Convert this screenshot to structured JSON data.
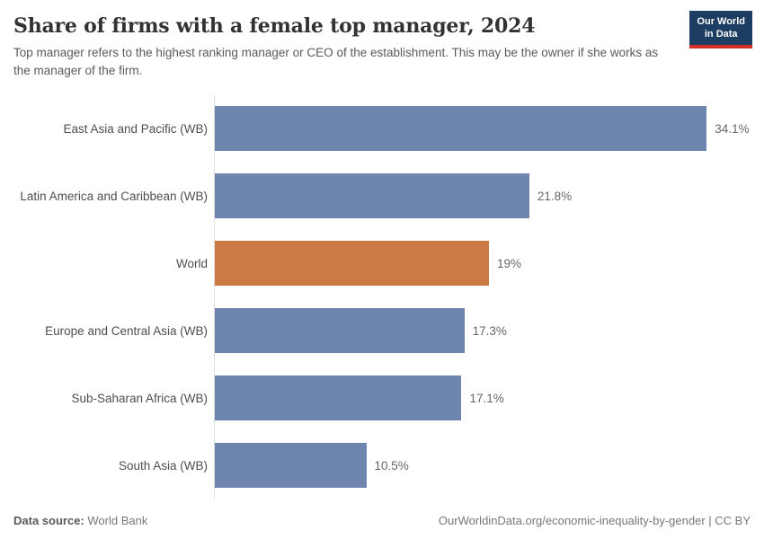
{
  "header": {
    "title": "Share of firms with a female top manager, 2024",
    "subtitle": "Top manager refers to the highest ranking manager or CEO of the establishment. This may be the owner if she works as the manager of the firm.",
    "logo": {
      "line1": "Our World",
      "line2": "in Data",
      "bg_color": "#1d3d63",
      "accent_color": "#cf2f27"
    }
  },
  "chart_data": {
    "type": "bar",
    "orientation": "horizontal",
    "title": "Share of firms with a female top manager, 2024",
    "unit": "%",
    "xlim": [
      0,
      37
    ],
    "grid": false,
    "legend": "none",
    "axis_color": "#dcdcdc",
    "categories": [
      "East Asia and Pacific (WB)",
      "Latin America and Caribbean (WB)",
      "World",
      "Europe and Central Asia (WB)",
      "Sub-Saharan Africa (WB)",
      "South Asia (WB)"
    ],
    "values": [
      34.1,
      21.8,
      19,
      17.3,
      17.1,
      10.5
    ],
    "value_labels": [
      "34.1%",
      "21.8%",
      "19%",
      "17.3%",
      "17.1%",
      "10.5%"
    ],
    "items": [
      {
        "label": "East Asia and Pacific (WB)",
        "value": 34.1,
        "display": "34.1%",
        "color": "#6e85ad"
      },
      {
        "label": "Latin America and Caribbean (WB)",
        "value": 21.8,
        "display": "21.8%",
        "color": "#6e85ad"
      },
      {
        "label": "World",
        "value": 19,
        "display": "19%",
        "color": "#cb7a45"
      },
      {
        "label": "Europe and Central Asia (WB)",
        "value": 17.3,
        "display": "17.3%",
        "color": "#6e85ad"
      },
      {
        "label": "Sub-Saharan Africa (WB)",
        "value": 17.1,
        "display": "17.1%",
        "color": "#6e85ad"
      },
      {
        "label": "South Asia (WB)",
        "value": 10.5,
        "display": "10.5%",
        "color": "#6e85ad"
      }
    ]
  },
  "footer": {
    "source_label": "Data source:",
    "source_value": "World Bank",
    "credit": "OurWorldinData.org/economic-inequality-by-gender | CC BY"
  }
}
